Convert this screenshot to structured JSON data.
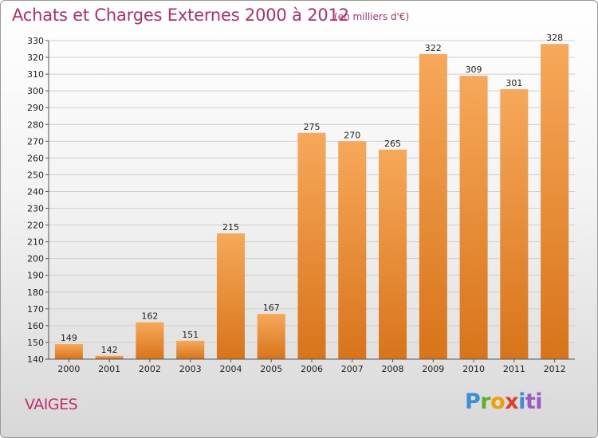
{
  "title": "Achats et Charges Externes 2000 à 2012",
  "subtitle": "(en milliers d'€)",
  "commune": "VAIGES",
  "logo": {
    "letters": [
      "P",
      "r",
      "o",
      "x",
      "i",
      "ti"
    ]
  },
  "colors": {
    "bar_top": "#f7a85a",
    "bar_bottom": "#d8741a",
    "title": "#b0306a",
    "grid": "#cfcfcf"
  },
  "chart_data": {
    "type": "bar",
    "categories": [
      "2000",
      "2001",
      "2002",
      "2003",
      "2004",
      "2005",
      "2006",
      "2007",
      "2008",
      "2009",
      "2010",
      "2011",
      "2012"
    ],
    "values": [
      149,
      142,
      162,
      151,
      215,
      167,
      275,
      270,
      265,
      322,
      309,
      301,
      328
    ],
    "ylim": [
      140,
      330
    ],
    "yticks": [
      140,
      150,
      160,
      170,
      180,
      190,
      200,
      210,
      220,
      230,
      240,
      250,
      260,
      270,
      280,
      290,
      300,
      310,
      320,
      330
    ],
    "grid": true,
    "legend": "none"
  }
}
